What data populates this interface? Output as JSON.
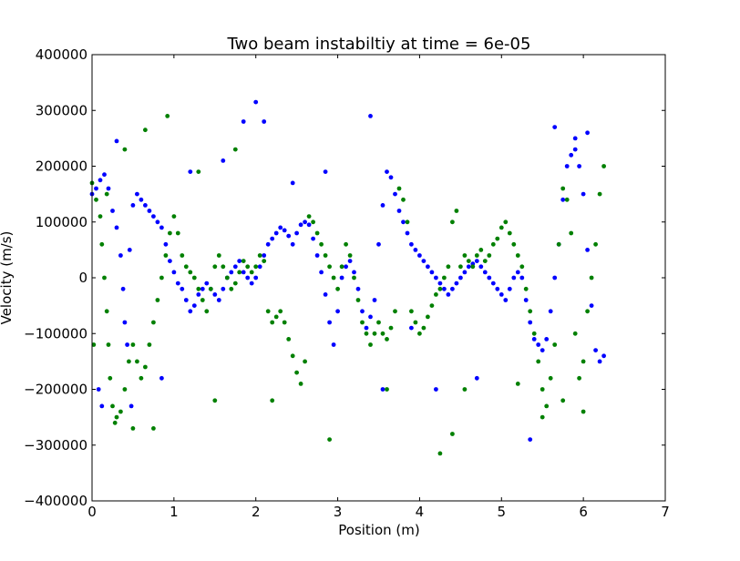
{
  "chart_data": {
    "type": "scatter",
    "title": "Two beam instabiltiy at time = 6e-05",
    "xlabel": "Position (m)",
    "ylabel": "Velocity (m/s)",
    "xlim": [
      0,
      7
    ],
    "ylim": [
      -400000,
      400000
    ],
    "x_ticks": [
      "0",
      "1",
      "2",
      "3",
      "4",
      "5",
      "6",
      "7"
    ],
    "y_ticks": [
      "400000",
      "300000",
      "200000",
      "100000",
      "0",
      "−100000",
      "−200000",
      "−300000",
      "−400000"
    ],
    "grid": false,
    "legend": "none",
    "series": [
      {
        "color": "#0000ff",
        "points": [
          [
            0.0,
            150000
          ],
          [
            0.05,
            160000
          ],
          [
            0.1,
            175000
          ],
          [
            0.15,
            185000
          ],
          [
            0.2,
            160000
          ],
          [
            0.25,
            120000
          ],
          [
            0.3,
            90000
          ],
          [
            0.35,
            40000
          ],
          [
            0.38,
            -20000
          ],
          [
            0.4,
            -80000
          ],
          [
            0.43,
            -120000
          ],
          [
            0.46,
            50000
          ],
          [
            0.5,
            130000
          ],
          [
            0.55,
            150000
          ],
          [
            0.6,
            140000
          ],
          [
            0.65,
            130000
          ],
          [
            0.7,
            120000
          ],
          [
            0.75,
            110000
          ],
          [
            0.8,
            100000
          ],
          [
            0.85,
            90000
          ],
          [
            0.9,
            60000
          ],
          [
            0.95,
            30000
          ],
          [
            1.0,
            10000
          ],
          [
            1.05,
            -10000
          ],
          [
            1.1,
            -20000
          ],
          [
            1.15,
            -40000
          ],
          [
            1.2,
            -60000
          ],
          [
            1.25,
            -50000
          ],
          [
            1.3,
            -30000
          ],
          [
            1.35,
            -20000
          ],
          [
            1.4,
            -10000
          ],
          [
            1.45,
            -20000
          ],
          [
            1.5,
            -30000
          ],
          [
            1.55,
            -40000
          ],
          [
            1.6,
            -20000
          ],
          [
            1.65,
            0
          ],
          [
            1.7,
            10000
          ],
          [
            1.75,
            20000
          ],
          [
            1.8,
            30000
          ],
          [
            1.85,
            10000
          ],
          [
            1.9,
            0
          ],
          [
            1.95,
            -10000
          ],
          [
            2.0,
            0
          ],
          [
            2.05,
            20000
          ],
          [
            2.1,
            40000
          ],
          [
            2.15,
            60000
          ],
          [
            2.2,
            70000
          ],
          [
            2.25,
            80000
          ],
          [
            2.3,
            90000
          ],
          [
            2.35,
            85000
          ],
          [
            2.4,
            75000
          ],
          [
            2.45,
            60000
          ],
          [
            2.5,
            80000
          ],
          [
            2.55,
            95000
          ],
          [
            2.6,
            100000
          ],
          [
            2.65,
            95000
          ],
          [
            2.7,
            70000
          ],
          [
            2.75,
            40000
          ],
          [
            2.8,
            10000
          ],
          [
            2.85,
            -30000
          ],
          [
            2.9,
            -80000
          ],
          [
            2.95,
            -120000
          ],
          [
            3.0,
            -60000
          ],
          [
            3.05,
            0
          ],
          [
            3.1,
            20000
          ],
          [
            3.15,
            30000
          ],
          [
            3.2,
            10000
          ],
          [
            3.25,
            -20000
          ],
          [
            3.3,
            -60000
          ],
          [
            3.35,
            -90000
          ],
          [
            3.4,
            -70000
          ],
          [
            3.45,
            -40000
          ],
          [
            3.5,
            60000
          ],
          [
            3.55,
            130000
          ],
          [
            3.6,
            190000
          ],
          [
            3.65,
            180000
          ],
          [
            3.7,
            150000
          ],
          [
            3.75,
            120000
          ],
          [
            3.8,
            100000
          ],
          [
            3.85,
            80000
          ],
          [
            3.9,
            60000
          ],
          [
            3.95,
            50000
          ],
          [
            4.0,
            40000
          ],
          [
            4.05,
            30000
          ],
          [
            4.1,
            20000
          ],
          [
            4.15,
            10000
          ],
          [
            4.2,
            0
          ],
          [
            4.25,
            -10000
          ],
          [
            4.3,
            -20000
          ],
          [
            4.35,
            -30000
          ],
          [
            4.4,
            -20000
          ],
          [
            4.45,
            -10000
          ],
          [
            4.5,
            0
          ],
          [
            4.55,
            10000
          ],
          [
            4.6,
            20000
          ],
          [
            4.65,
            25000
          ],
          [
            4.7,
            30000
          ],
          [
            4.75,
            20000
          ],
          [
            4.8,
            10000
          ],
          [
            4.85,
            0
          ],
          [
            4.9,
            -10000
          ],
          [
            4.95,
            -20000
          ],
          [
            5.0,
            -30000
          ],
          [
            5.05,
            -40000
          ],
          [
            5.1,
            -20000
          ],
          [
            5.15,
            0
          ],
          [
            5.2,
            10000
          ],
          [
            5.25,
            0
          ],
          [
            5.3,
            -40000
          ],
          [
            5.35,
            -80000
          ],
          [
            5.4,
            -110000
          ],
          [
            5.45,
            -120000
          ],
          [
            5.5,
            -130000
          ],
          [
            5.55,
            -110000
          ],
          [
            5.6,
            -60000
          ],
          [
            5.65,
            0
          ],
          [
            5.7,
            60000
          ],
          [
            5.75,
            140000
          ],
          [
            5.8,
            200000
          ],
          [
            5.85,
            220000
          ],
          [
            5.9,
            230000
          ],
          [
            5.95,
            200000
          ],
          [
            6.0,
            150000
          ],
          [
            6.05,
            50000
          ],
          [
            6.1,
            -50000
          ],
          [
            6.15,
            -130000
          ],
          [
            6.2,
            -150000
          ],
          [
            6.25,
            -140000
          ],
          [
            0.08,
            -200000
          ],
          [
            0.12,
            -230000
          ],
          [
            0.3,
            245000
          ],
          [
            0.48,
            -230000
          ],
          [
            0.85,
            -180000
          ],
          [
            1.2,
            190000
          ],
          [
            1.6,
            210000
          ],
          [
            1.85,
            280000
          ],
          [
            2.0,
            315000
          ],
          [
            2.1,
            280000
          ],
          [
            2.45,
            170000
          ],
          [
            2.85,
            190000
          ],
          [
            3.4,
            290000
          ],
          [
            3.55,
            -200000
          ],
          [
            3.9,
            -90000
          ],
          [
            4.2,
            -200000
          ],
          [
            4.7,
            -180000
          ],
          [
            5.35,
            -290000
          ],
          [
            5.65,
            270000
          ],
          [
            5.9,
            250000
          ],
          [
            6.05,
            260000
          ]
        ]
      },
      {
        "color": "#008000",
        "points": [
          [
            0.0,
            170000
          ],
          [
            0.05,
            140000
          ],
          [
            0.1,
            110000
          ],
          [
            0.12,
            60000
          ],
          [
            0.15,
            0
          ],
          [
            0.18,
            -60000
          ],
          [
            0.2,
            -120000
          ],
          [
            0.22,
            -180000
          ],
          [
            0.25,
            -230000
          ],
          [
            0.3,
            -250000
          ],
          [
            0.35,
            -240000
          ],
          [
            0.4,
            -200000
          ],
          [
            0.45,
            -150000
          ],
          [
            0.5,
            -120000
          ],
          [
            0.55,
            -150000
          ],
          [
            0.6,
            -180000
          ],
          [
            0.65,
            -160000
          ],
          [
            0.7,
            -120000
          ],
          [
            0.75,
            -80000
          ],
          [
            0.8,
            -40000
          ],
          [
            0.85,
            0
          ],
          [
            0.9,
            40000
          ],
          [
            0.95,
            80000
          ],
          [
            1.0,
            110000
          ],
          [
            1.05,
            80000
          ],
          [
            1.1,
            40000
          ],
          [
            1.15,
            20000
          ],
          [
            1.2,
            10000
          ],
          [
            1.25,
            0
          ],
          [
            1.3,
            -20000
          ],
          [
            1.35,
            -40000
          ],
          [
            1.4,
            -60000
          ],
          [
            1.45,
            -20000
          ],
          [
            1.5,
            20000
          ],
          [
            1.55,
            40000
          ],
          [
            1.6,
            20000
          ],
          [
            1.65,
            0
          ],
          [
            1.7,
            -20000
          ],
          [
            1.75,
            -10000
          ],
          [
            1.8,
            10000
          ],
          [
            1.85,
            30000
          ],
          [
            1.9,
            20000
          ],
          [
            1.95,
            10000
          ],
          [
            2.0,
            20000
          ],
          [
            2.05,
            40000
          ],
          [
            2.1,
            30000
          ],
          [
            2.15,
            -60000
          ],
          [
            2.2,
            -80000
          ],
          [
            2.25,
            -70000
          ],
          [
            2.3,
            -60000
          ],
          [
            2.35,
            -80000
          ],
          [
            2.4,
            -110000
          ],
          [
            2.45,
            -140000
          ],
          [
            2.5,
            -170000
          ],
          [
            2.55,
            -190000
          ],
          [
            2.6,
            -150000
          ],
          [
            2.65,
            110000
          ],
          [
            2.7,
            100000
          ],
          [
            2.75,
            80000
          ],
          [
            2.8,
            60000
          ],
          [
            2.85,
            40000
          ],
          [
            2.9,
            20000
          ],
          [
            2.95,
            0
          ],
          [
            3.0,
            -20000
          ],
          [
            3.05,
            20000
          ],
          [
            3.1,
            60000
          ],
          [
            3.15,
            40000
          ],
          [
            3.2,
            0
          ],
          [
            3.25,
            -40000
          ],
          [
            3.3,
            -80000
          ],
          [
            3.35,
            -100000
          ],
          [
            3.4,
            -120000
          ],
          [
            3.45,
            -100000
          ],
          [
            3.5,
            -80000
          ],
          [
            3.55,
            -100000
          ],
          [
            3.6,
            -110000
          ],
          [
            3.65,
            -90000
          ],
          [
            3.7,
            -60000
          ],
          [
            3.75,
            160000
          ],
          [
            3.8,
            140000
          ],
          [
            3.85,
            100000
          ],
          [
            3.9,
            -60000
          ],
          [
            3.95,
            -80000
          ],
          [
            4.0,
            -100000
          ],
          [
            4.05,
            -90000
          ],
          [
            4.1,
            -70000
          ],
          [
            4.15,
            -50000
          ],
          [
            4.2,
            -30000
          ],
          [
            4.25,
            -20000
          ],
          [
            4.3,
            0
          ],
          [
            4.35,
            20000
          ],
          [
            4.4,
            100000
          ],
          [
            4.45,
            120000
          ],
          [
            4.5,
            20000
          ],
          [
            4.55,
            40000
          ],
          [
            4.6,
            30000
          ],
          [
            4.65,
            20000
          ],
          [
            4.7,
            40000
          ],
          [
            4.75,
            50000
          ],
          [
            4.8,
            30000
          ],
          [
            4.85,
            40000
          ],
          [
            4.9,
            60000
          ],
          [
            4.95,
            70000
          ],
          [
            5.0,
            90000
          ],
          [
            5.05,
            100000
          ],
          [
            5.1,
            80000
          ],
          [
            5.15,
            60000
          ],
          [
            5.2,
            40000
          ],
          [
            5.25,
            20000
          ],
          [
            5.3,
            -20000
          ],
          [
            5.35,
            -60000
          ],
          [
            5.4,
            -100000
          ],
          [
            5.45,
            -150000
          ],
          [
            5.5,
            -200000
          ],
          [
            5.55,
            -230000
          ],
          [
            5.6,
            -180000
          ],
          [
            5.65,
            -120000
          ],
          [
            5.7,
            60000
          ],
          [
            5.75,
            160000
          ],
          [
            5.8,
            140000
          ],
          [
            5.85,
            80000
          ],
          [
            5.9,
            -100000
          ],
          [
            5.95,
            -180000
          ],
          [
            6.0,
            -150000
          ],
          [
            6.05,
            -60000
          ],
          [
            6.1,
            0
          ],
          [
            6.15,
            60000
          ],
          [
            6.2,
            150000
          ],
          [
            6.25,
            200000
          ],
          [
            0.02,
            -120000
          ],
          [
            0.28,
            -260000
          ],
          [
            0.5,
            -270000
          ],
          [
            0.65,
            265000
          ],
          [
            0.75,
            -270000
          ],
          [
            0.92,
            290000
          ],
          [
            1.3,
            190000
          ],
          [
            1.5,
            -220000
          ],
          [
            1.75,
            230000
          ],
          [
            2.2,
            -220000
          ],
          [
            2.9,
            -290000
          ],
          [
            3.6,
            -200000
          ],
          [
            4.25,
            -315000
          ],
          [
            4.4,
            -280000
          ],
          [
            4.55,
            -200000
          ],
          [
            5.2,
            -190000
          ],
          [
            5.5,
            -250000
          ],
          [
            5.75,
            -220000
          ],
          [
            6.0,
            -240000
          ],
          [
            0.4,
            230000
          ],
          [
            0.18,
            150000
          ]
        ]
      }
    ]
  }
}
